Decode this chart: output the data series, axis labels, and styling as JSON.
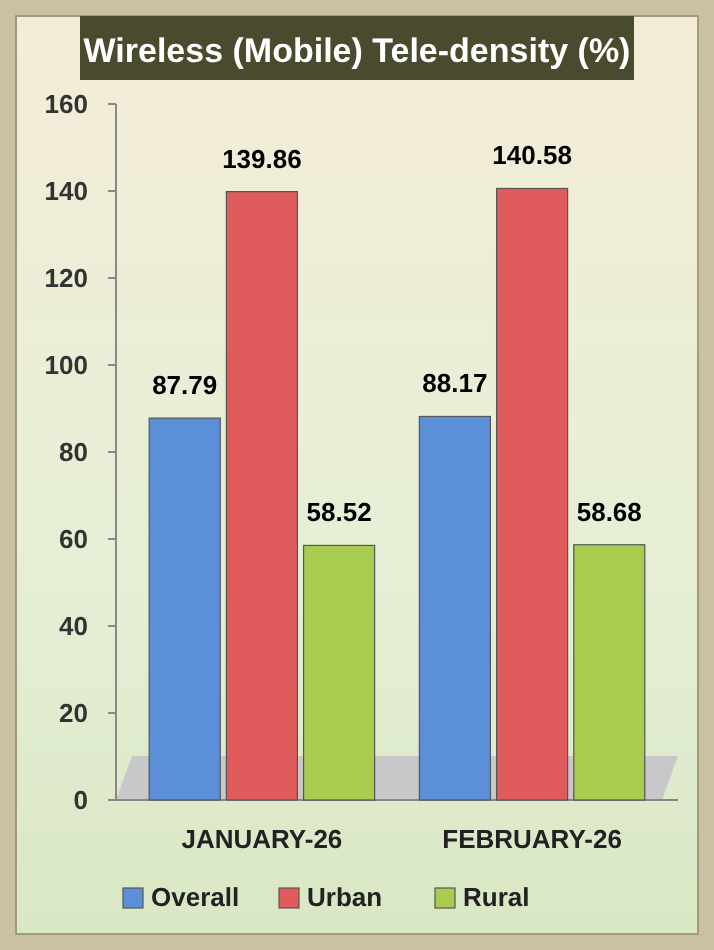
{
  "chart_data": {
    "type": "bar",
    "title": "Wireless (Mobile) Tele-density (%)",
    "categories": [
      "JANUARY-26",
      "FEBRUARY-26"
    ],
    "series": [
      {
        "name": "Overall",
        "color": "#5b8fd8",
        "values": [
          87.79,
          88.17
        ]
      },
      {
        "name": "Urban",
        "color": "#e05b5b",
        "values": [
          139.86,
          140.58
        ]
      },
      {
        "name": "Rural",
        "color": "#a8cc4e",
        "values": [
          58.52,
          58.68
        ]
      }
    ],
    "ylim": [
      0,
      160
    ],
    "yticks": [
      0,
      20,
      40,
      60,
      80,
      100,
      120,
      140,
      160
    ],
    "grid": false,
    "legend": "bottom",
    "data_labels": true
  }
}
